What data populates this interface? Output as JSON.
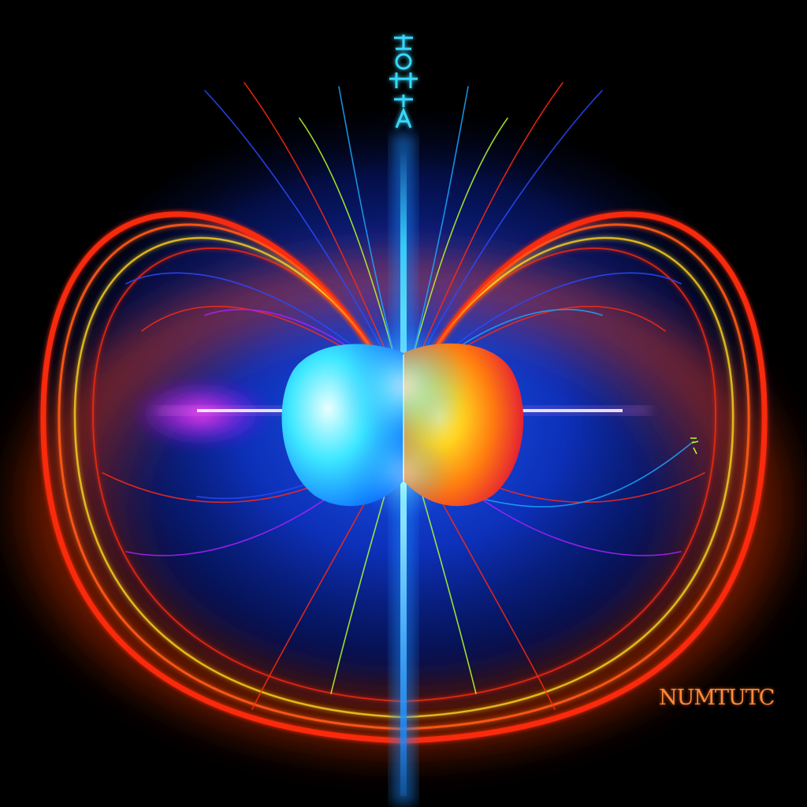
{
  "image": {
    "background_color": "#000000",
    "left_sphere_colors": [
      "#d8ffff",
      "#3ee8ff",
      "#0a6cff"
    ],
    "right_sphere_colors": [
      "#ffe84a",
      "#ff7a10",
      "#e0103a"
    ],
    "field_line_colors": [
      "#ff2a10",
      "#ff5a14",
      "#ffd21e",
      "#2a4bff",
      "#1aa8ff",
      "#b8ff2a",
      "#b020ff"
    ],
    "glow_color": "#ff3a0a",
    "axis_color": "#38d8ff",
    "magenta_glow_color": "#ff22e6"
  },
  "labels": {
    "top_glyphs": "",
    "bottom_right_text": "NUMTUTC"
  }
}
